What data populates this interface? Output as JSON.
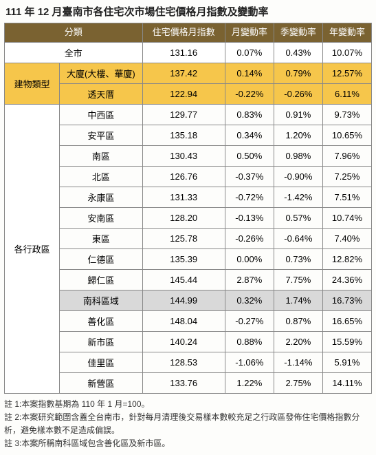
{
  "title": "111 年 12 月臺南市各住宅次市場住宅價格月指數及變動率",
  "header": {
    "category": "分類",
    "index": "住宅價格月指數",
    "month": "月變動率",
    "quarter": "季變動率",
    "year": "年變動率"
  },
  "cityRow": {
    "label": "全市",
    "index": "131.16",
    "m": "0.07%",
    "q": "0.43%",
    "y": "10.07%"
  },
  "buildingType": {
    "sideLabel": "建物類型",
    "rows": [
      {
        "label": "大廈(大樓、華廈)",
        "index": "137.42",
        "m": "0.14%",
        "q": "0.79%",
        "y": "12.57%"
      },
      {
        "label": "透天厝",
        "index": "122.94",
        "m": "-0.22%",
        "q": "-0.26%",
        "y": "6.11%"
      }
    ]
  },
  "districts": {
    "sideLabel": "各行政區",
    "rows": [
      {
        "label": "中西區",
        "index": "129.77",
        "m": "0.83%",
        "q": "0.91%",
        "y": "9.73%",
        "hl": false
      },
      {
        "label": "安平區",
        "index": "135.18",
        "m": "0.34%",
        "q": "1.20%",
        "y": "10.65%",
        "hl": false
      },
      {
        "label": "南區",
        "index": "130.43",
        "m": "0.50%",
        "q": "0.98%",
        "y": "7.96%",
        "hl": false
      },
      {
        "label": "北區",
        "index": "126.76",
        "m": "-0.37%",
        "q": "-0.90%",
        "y": "7.25%",
        "hl": false
      },
      {
        "label": "永康區",
        "index": "131.33",
        "m": "-0.72%",
        "q": "-1.42%",
        "y": "7.51%",
        "hl": false
      },
      {
        "label": "安南區",
        "index": "128.20",
        "m": "-0.13%",
        "q": "0.57%",
        "y": "10.74%",
        "hl": false
      },
      {
        "label": "東區",
        "index": "125.78",
        "m": "-0.26%",
        "q": "-0.64%",
        "y": "7.40%",
        "hl": false
      },
      {
        "label": "仁德區",
        "index": "135.39",
        "m": "0.00%",
        "q": "0.73%",
        "y": "12.82%",
        "hl": false
      },
      {
        "label": "歸仁區",
        "index": "145.44",
        "m": "2.87%",
        "q": "7.75%",
        "y": "24.36%",
        "hl": false
      },
      {
        "label": "南科區域",
        "index": "144.99",
        "m": "0.32%",
        "q": "1.74%",
        "y": "16.73%",
        "hl": true
      },
      {
        "label": "善化區",
        "index": "148.04",
        "m": "-0.27%",
        "q": "0.87%",
        "y": "16.65%",
        "hl": false
      },
      {
        "label": "新市區",
        "index": "140.24",
        "m": "0.88%",
        "q": "2.20%",
        "y": "15.59%",
        "hl": false
      },
      {
        "label": "佳里區",
        "index": "128.53",
        "m": "-1.06%",
        "q": "-1.14%",
        "y": "5.91%",
        "hl": false
      },
      {
        "label": "新營區",
        "index": "133.76",
        "m": "1.22%",
        "q": "2.75%",
        "y": "14.11%",
        "hl": false
      }
    ]
  },
  "notes": [
    "註 1:本案指數基期為 110 年 1 月=100。",
    "註 2:本案研究範圍含蓋全台南市，針對每月清理後交易樣本數較充足之行政區發佈住宅價格指數分析，避免樣本數不足造成偏誤。",
    "註 3:本案所稱南科區域包含善化區及新市區。"
  ]
}
